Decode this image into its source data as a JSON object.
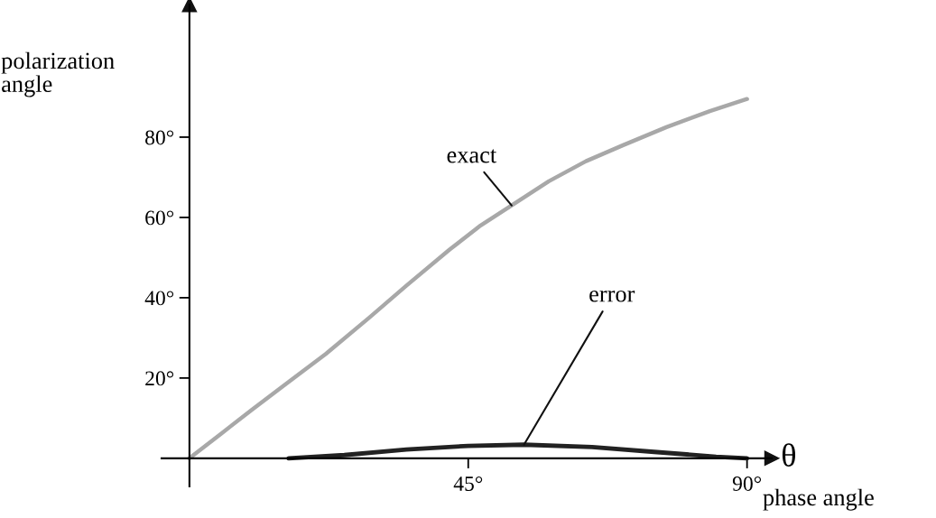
{
  "chart_data": {
    "type": "line",
    "xlabel": "phase angle",
    "ylabel": "polarization angle",
    "x": [
      0,
      5,
      10,
      16,
      22,
      29,
      35,
      42,
      47,
      52,
      58,
      64,
      70,
      77,
      84,
      90
    ],
    "series": [
      {
        "name": "exact",
        "color": "#a8a8a8",
        "values": [
          0,
          6,
          12,
          19,
          26,
          35,
          43,
          52,
          58,
          63,
          69,
          74,
          78,
          82.5,
          86.5,
          89.5
        ]
      },
      {
        "name": "error",
        "color": "#222222",
        "x": [
          16,
          25,
          35,
          45,
          54,
          65,
          75,
          85,
          90
        ],
        "values": [
          0,
          0.8,
          2.2,
          3.1,
          3.4,
          2.8,
          1.6,
          0.4,
          0
        ]
      }
    ],
    "annotations": [
      "θ"
    ],
    "xlim": [
      -4.5,
      94
    ],
    "ylim": [
      -7,
      113
    ],
    "xticks": [
      {
        "value": 45,
        "label": "45°"
      },
      {
        "value": 90,
        "label": "90°"
      }
    ],
    "yticks": [
      {
        "value": 20,
        "label": "20°"
      },
      {
        "value": 40,
        "label": "40°"
      },
      {
        "value": 60,
        "label": "60°"
      },
      {
        "value": 80,
        "label": "80°"
      }
    ],
    "grid": false,
    "legend": false,
    "marker": "none",
    "line_style": "solid"
  }
}
